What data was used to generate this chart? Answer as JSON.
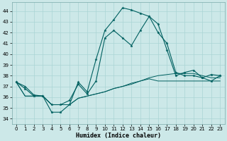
{
  "xlabel": "Humidex (Indice chaleur)",
  "background_color": "#cce8e8",
  "line_color": "#006060",
  "grid_color": "#aad4d4",
  "xlim": [
    -0.5,
    23.5
  ],
  "ylim": [
    33.5,
    44.8
  ],
  "yticks": [
    34,
    35,
    36,
    37,
    38,
    39,
    40,
    41,
    42,
    43,
    44
  ],
  "xticks": [
    0,
    1,
    2,
    3,
    4,
    5,
    6,
    7,
    8,
    9,
    10,
    11,
    12,
    13,
    14,
    15,
    16,
    17,
    18,
    19,
    20,
    21,
    22,
    23
  ],
  "series1": [
    37.4,
    37.0,
    36.2,
    36.1,
    34.6,
    34.6,
    35.3,
    37.4,
    36.5,
    39.5,
    42.2,
    43.2,
    44.3,
    44.1,
    43.8,
    43.5,
    42.8,
    40.4,
    38.0,
    38.3,
    38.5,
    37.8,
    38.1,
    38.0
  ],
  "series2": [
    37.4,
    36.8,
    36.1,
    36.1,
    35.3,
    35.3,
    35.7,
    37.2,
    36.3,
    37.5,
    41.5,
    42.2,
    41.5,
    40.8,
    42.2,
    43.5,
    42.0,
    41.0,
    38.3,
    38.0,
    38.0,
    37.8,
    37.5,
    38.0
  ],
  "series3": [
    37.4,
    36.1,
    36.1,
    36.1,
    35.3,
    35.3,
    35.3,
    35.9,
    36.1,
    36.3,
    36.5,
    36.8,
    37.0,
    37.2,
    37.5,
    37.7,
    37.5,
    37.5,
    37.5,
    37.5,
    37.5,
    37.5,
    37.5,
    37.5
  ],
  "series4": [
    37.4,
    36.1,
    36.1,
    36.1,
    35.3,
    35.3,
    35.3,
    35.9,
    36.1,
    36.3,
    36.5,
    36.8,
    37.0,
    37.3,
    37.5,
    37.8,
    38.0,
    38.1,
    38.2,
    38.2,
    38.2,
    38.0,
    37.8,
    37.8
  ]
}
